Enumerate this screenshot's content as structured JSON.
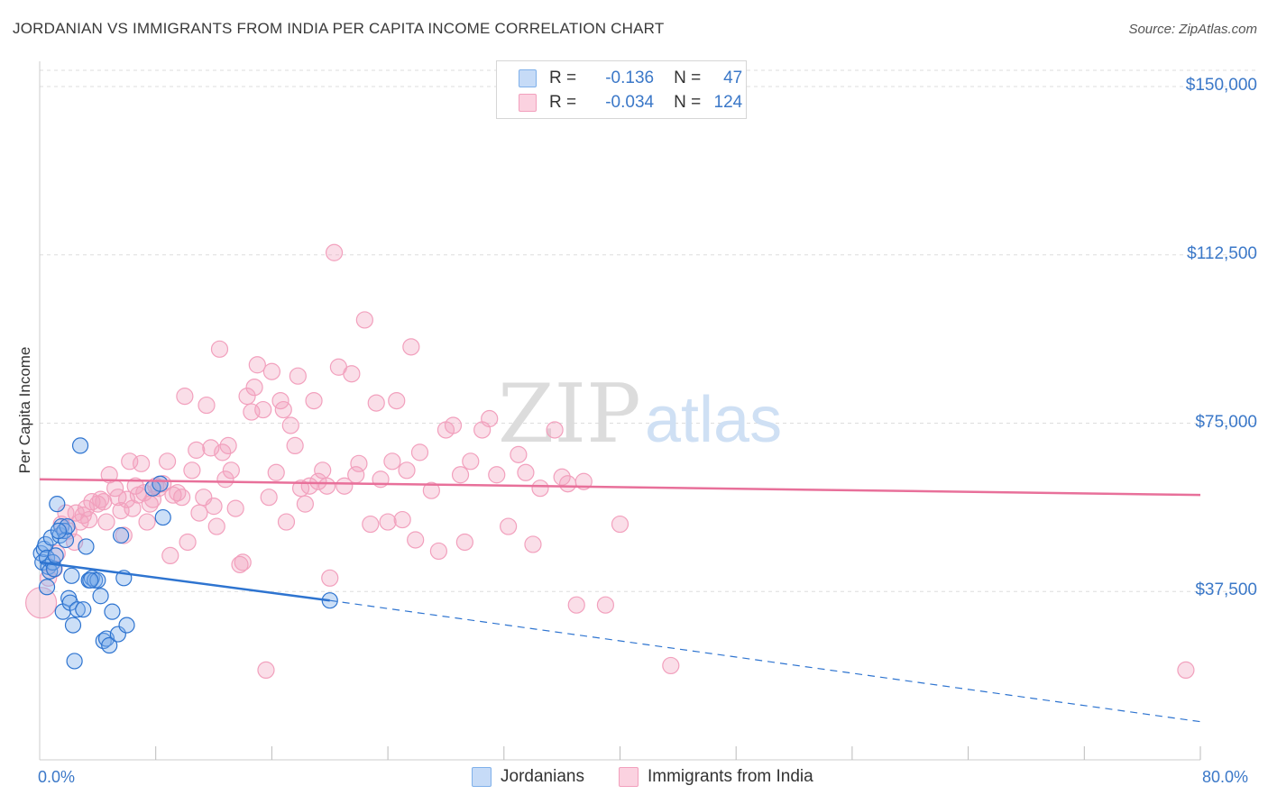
{
  "header": {
    "title": "JORDANIAN VS IMMIGRANTS FROM INDIA PER CAPITA INCOME CORRELATION CHART",
    "source": "Source: ZipAtlas.com"
  },
  "legend": {
    "rows": [
      {
        "r_label": "R =",
        "r_value": "-0.136",
        "n_label": "N =",
        "n_value": "47",
        "color": "#7fb0ea"
      },
      {
        "r_label": "R =",
        "r_value": "-0.034",
        "n_label": "N =",
        "n_value": "124",
        "color": "#f2a0bd"
      }
    ]
  },
  "bottom_legend": {
    "series1": "Jordanians",
    "series2": "Immigrants from India"
  },
  "colors": {
    "jordanians": "#7fb0ea",
    "jordanians_line": "#2e74d0",
    "india": "#f2a0bd",
    "india_line": "#e8709a",
    "axis_text": "#3b78c8",
    "grid": "#dddddd"
  },
  "chart_data": {
    "type": "scatter",
    "title": "JORDANIAN VS IMMIGRANTS FROM INDIA PER CAPITA INCOME CORRELATION CHART",
    "xlabel": "",
    "ylabel": "Per Capita Income",
    "xlim": [
      0,
      80
    ],
    "ylim": [
      0,
      155000
    ],
    "x_tick_labels": [
      "0.0%",
      "80.0%"
    ],
    "y_ticks": [
      37500,
      75000,
      112500,
      150000
    ],
    "y_tick_labels": [
      "$37,500",
      "$75,000",
      "$112,500",
      "$150,000"
    ],
    "grid": true,
    "legend_placement": "top-center",
    "watermark": {
      "zip": "ZIP",
      "atlas": "atlas"
    },
    "series": [
      {
        "name": "Jordanians",
        "trend": {
          "x": [
            0,
            20
          ],
          "y": [
            44000,
            35500
          ],
          "dashed_to": [
            80,
            8500
          ]
        },
        "points": [
          [
            0.1,
            46000
          ],
          [
            0.2,
            44000
          ],
          [
            0.3,
            47000
          ],
          [
            0.4,
            48000
          ],
          [
            0.5,
            45000
          ],
          [
            0.6,
            43000
          ],
          [
            0.7,
            42000
          ],
          [
            0.8,
            49500
          ],
          [
            0.9,
            44000
          ],
          [
            1.0,
            42500
          ],
          [
            1.1,
            45500
          ],
          [
            1.2,
            57000
          ],
          [
            1.4,
            50000
          ],
          [
            1.5,
            52000
          ],
          [
            1.6,
            33000
          ],
          [
            1.7,
            51000
          ],
          [
            1.8,
            49000
          ],
          [
            1.9,
            52000
          ],
          [
            2.0,
            36000
          ],
          [
            2.1,
            35000
          ],
          [
            2.3,
            30000
          ],
          [
            2.4,
            22000
          ],
          [
            2.6,
            33500
          ],
          [
            2.8,
            70000
          ],
          [
            3.0,
            33500
          ],
          [
            3.2,
            47500
          ],
          [
            3.4,
            40000
          ],
          [
            3.6,
            40500
          ],
          [
            3.8,
            40000
          ],
          [
            4.0,
            40000
          ],
          [
            4.2,
            36500
          ],
          [
            4.4,
            26500
          ],
          [
            4.6,
            27000
          ],
          [
            4.8,
            25500
          ],
          [
            5.0,
            33000
          ],
          [
            5.4,
            28000
          ],
          [
            5.6,
            50000
          ],
          [
            5.8,
            40500
          ],
          [
            6.0,
            30000
          ],
          [
            7.8,
            60500
          ],
          [
            8.3,
            61500
          ],
          [
            8.5,
            54000
          ],
          [
            2.2,
            41000
          ],
          [
            1.3,
            51000
          ],
          [
            0.5,
            38500
          ],
          [
            3.5,
            40000
          ],
          [
            20.0,
            35500
          ]
        ]
      },
      {
        "name": "Immigrants from India",
        "trend": {
          "x": [
            0,
            80
          ],
          "y": [
            62500,
            59000
          ]
        },
        "points": [
          [
            0.1,
            35000
          ],
          [
            0.6,
            40500
          ],
          [
            1.0,
            42500
          ],
          [
            1.2,
            46000
          ],
          [
            1.5,
            52500
          ],
          [
            2.0,
            51000
          ],
          [
            2.5,
            55000
          ],
          [
            2.8,
            53000
          ],
          [
            3.2,
            56000
          ],
          [
            3.4,
            53500
          ],
          [
            3.6,
            57500
          ],
          [
            4.0,
            57000
          ],
          [
            4.2,
            58000
          ],
          [
            4.4,
            57500
          ],
          [
            4.6,
            53000
          ],
          [
            4.8,
            63500
          ],
          [
            5.2,
            60500
          ],
          [
            5.4,
            58500
          ],
          [
            5.6,
            55500
          ],
          [
            5.8,
            50000
          ],
          [
            6.0,
            58000
          ],
          [
            6.2,
            66500
          ],
          [
            6.4,
            56000
          ],
          [
            6.6,
            61000
          ],
          [
            6.8,
            59000
          ],
          [
            7.0,
            66000
          ],
          [
            7.2,
            59500
          ],
          [
            7.4,
            53000
          ],
          [
            7.6,
            57000
          ],
          [
            7.8,
            58000
          ],
          [
            8.0,
            61000
          ],
          [
            8.2,
            60500
          ],
          [
            8.5,
            61500
          ],
          [
            8.8,
            66500
          ],
          [
            9.0,
            45500
          ],
          [
            9.2,
            59000
          ],
          [
            9.5,
            59500
          ],
          [
            9.8,
            58500
          ],
          [
            10.0,
            81000
          ],
          [
            10.2,
            48500
          ],
          [
            10.5,
            64500
          ],
          [
            10.8,
            69000
          ],
          [
            11.0,
            55000
          ],
          [
            11.3,
            58500
          ],
          [
            11.5,
            79000
          ],
          [
            11.8,
            69500
          ],
          [
            12.0,
            56500
          ],
          [
            12.2,
            52000
          ],
          [
            12.4,
            91500
          ],
          [
            12.6,
            68500
          ],
          [
            12.8,
            62500
          ],
          [
            13.0,
            70000
          ],
          [
            13.2,
            64500
          ],
          [
            13.5,
            56000
          ],
          [
            13.8,
            43500
          ],
          [
            14.0,
            44000
          ],
          [
            14.3,
            81000
          ],
          [
            14.6,
            77500
          ],
          [
            14.8,
            83000
          ],
          [
            15.0,
            88000
          ],
          [
            15.4,
            78000
          ],
          [
            15.6,
            20000
          ],
          [
            15.8,
            58500
          ],
          [
            16.0,
            86500
          ],
          [
            16.3,
            64000
          ],
          [
            16.6,
            80000
          ],
          [
            16.8,
            78000
          ],
          [
            17.0,
            53000
          ],
          [
            17.3,
            74500
          ],
          [
            17.6,
            70000
          ],
          [
            17.8,
            85500
          ],
          [
            18.0,
            60500
          ],
          [
            18.3,
            57000
          ],
          [
            18.6,
            61000
          ],
          [
            18.9,
            80000
          ],
          [
            19.2,
            62000
          ],
          [
            19.5,
            64500
          ],
          [
            19.8,
            61000
          ],
          [
            20.0,
            40500
          ],
          [
            20.3,
            113000
          ],
          [
            20.6,
            87500
          ],
          [
            21.0,
            61000
          ],
          [
            21.5,
            86000
          ],
          [
            21.8,
            63500
          ],
          [
            22.0,
            66000
          ],
          [
            22.4,
            98000
          ],
          [
            22.8,
            52500
          ],
          [
            23.2,
            79500
          ],
          [
            23.5,
            62500
          ],
          [
            24.0,
            53000
          ],
          [
            24.3,
            66500
          ],
          [
            24.6,
            80000
          ],
          [
            25.0,
            53500
          ],
          [
            25.3,
            64500
          ],
          [
            25.6,
            92000
          ],
          [
            25.9,
            49000
          ],
          [
            26.2,
            68500
          ],
          [
            27.0,
            60000
          ],
          [
            27.5,
            46500
          ],
          [
            28.0,
            73500
          ],
          [
            28.5,
            74500
          ],
          [
            29.0,
            63500
          ],
          [
            29.3,
            48500
          ],
          [
            29.7,
            66500
          ],
          [
            30.5,
            73500
          ],
          [
            31.0,
            76000
          ],
          [
            31.5,
            63500
          ],
          [
            32.3,
            52000
          ],
          [
            33.0,
            68000
          ],
          [
            33.5,
            64000
          ],
          [
            34.0,
            48000
          ],
          [
            34.5,
            60500
          ],
          [
            35.5,
            73500
          ],
          [
            36.0,
            63000
          ],
          [
            36.4,
            61500
          ],
          [
            37.0,
            34500
          ],
          [
            37.5,
            62000
          ],
          [
            39.0,
            34500
          ],
          [
            40.0,
            52500
          ],
          [
            43.5,
            21000
          ],
          [
            79.0,
            20000
          ],
          [
            1.8,
            55000
          ],
          [
            2.4,
            48500
          ],
          [
            3.0,
            54500
          ]
        ]
      }
    ]
  }
}
